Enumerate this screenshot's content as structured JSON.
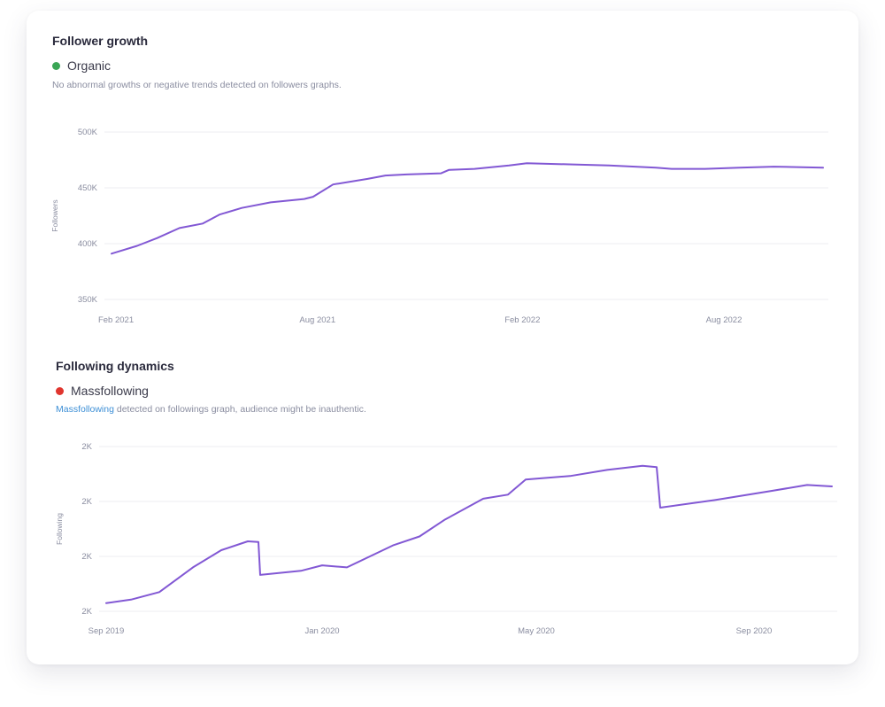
{
  "colors": {
    "line": "#8258d4",
    "grid": "#ececf2",
    "organic_dot": "#3aa655",
    "massfollowing_dot": "#e0352e",
    "link": "#3d8fd6"
  },
  "follower": {
    "title": "Follower growth",
    "status": "Organic",
    "description": "No abnormal growths or negative trends detected on followers graphs."
  },
  "following": {
    "title": "Following dynamics",
    "status": "Massfollowing",
    "description_link": "Massfollowing",
    "description_rest": " detected on followings graph, audience might be inauthentic."
  },
  "chart_data": [
    {
      "type": "line",
      "title": "Follower growth",
      "ylabel": "Followers",
      "xlabel": "",
      "grid": true,
      "ylim": [
        350000,
        500000
      ],
      "y_ticks": [
        500000,
        450000,
        400000,
        350000
      ],
      "y_tick_labels": [
        "500K",
        "450K",
        "400K",
        "350K"
      ],
      "x_range": [
        "2021-01-28",
        "2022-10-29"
      ],
      "x_ticks": [
        "2021-02-01",
        "2021-08-01",
        "2022-02-01",
        "2022-08-01"
      ],
      "x_tick_labels": [
        "Feb 2021",
        "Aug 2021",
        "Feb 2022",
        "Aug 2022"
      ],
      "series": [
        {
          "x": [
            "2021-01-28",
            "2021-02-20",
            "2021-03-10",
            "2021-03-30",
            "2021-04-20",
            "2021-05-05",
            "2021-05-25",
            "2021-06-20",
            "2021-07-20",
            "2021-07-28",
            "2021-08-15",
            "2021-09-15",
            "2021-10-01",
            "2021-10-20",
            "2021-11-20",
            "2021-11-27",
            "2021-12-20",
            "2022-01-20",
            "2022-02-05",
            "2022-03-15",
            "2022-04-20",
            "2022-06-01",
            "2022-06-15",
            "2022-07-15",
            "2022-08-15",
            "2022-09-15",
            "2022-10-29"
          ],
          "values": [
            391000,
            398000,
            405000,
            414000,
            418000,
            426000,
            432000,
            437000,
            440000,
            442000,
            453000,
            458000,
            461000,
            462000,
            463000,
            466000,
            467000,
            470000,
            472000,
            471000,
            470000,
            468000,
            467000,
            467000,
            468000,
            469000,
            468000
          ]
        }
      ]
    },
    {
      "type": "line",
      "title": "Following dynamics",
      "ylabel": "Following",
      "xlabel": "",
      "grid": true,
      "y_tick_labels": [
        "2K",
        "2K",
        "2K",
        "2K"
      ],
      "x_range": [
        "2019-09-01",
        "2020-10-15"
      ],
      "x_ticks": [
        "2019-09-01",
        "2020-01-01",
        "2020-05-01",
        "2020-09-01"
      ],
      "x_tick_labels": [
        "Sep 2019",
        "Jan 2020",
        "May 2020",
        "Sep 2020"
      ],
      "series": [
        {
          "x": [
            "2019-09-01",
            "2019-09-15",
            "2019-10-01",
            "2019-10-20",
            "2019-11-05",
            "2019-11-20",
            "2019-11-26",
            "2019-11-27",
            "2019-12-20",
            "2020-01-01",
            "2020-01-15",
            "2020-02-10",
            "2020-02-25",
            "2020-03-10",
            "2020-04-01",
            "2020-04-15",
            "2020-04-25",
            "2020-05-20",
            "2020-06-10",
            "2020-06-30",
            "2020-07-08",
            "2020-07-10",
            "2020-08-10",
            "2020-09-10",
            "2020-10-01",
            "2020-10-15"
          ],
          "values": [
            1702,
            1707,
            1718,
            1754,
            1779,
            1792,
            1791,
            1743,
            1749,
            1757,
            1754,
            1786,
            1799,
            1823,
            1854,
            1860,
            1882,
            1887,
            1896,
            1902,
            1900,
            1841,
            1852,
            1865,
            1874,
            1872
          ]
        }
      ]
    }
  ]
}
